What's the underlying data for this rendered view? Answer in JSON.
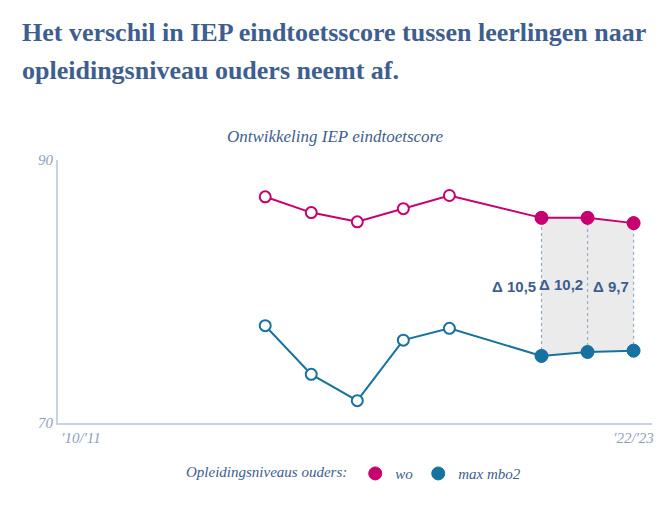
{
  "chart_data": {
    "type": "line",
    "title": "Het verschil in IEP eindtoetsscore tussen leerlingen naar opleidingsniveau ouders neemt af.",
    "subtitle": "Ontwikkeling IEP eindtoetscore",
    "categories": [
      "'10/'11",
      null,
      null,
      null,
      null,
      null,
      null,
      null,
      null,
      null,
      null,
      null,
      "'22/'23"
    ],
    "series": [
      {
        "name": "max mbo2",
        "color": "#17729f",
        "values": [
          null,
          null,
          null,
          null,
          77.4,
          73.7,
          71.7,
          76.3,
          77.2,
          null,
          75.1,
          75.4,
          75.5
        ]
      },
      {
        "name": "wo",
        "color": "#c8006f",
        "values": [
          null,
          null,
          null,
          null,
          87.2,
          86.0,
          85.3,
          86.3,
          87.3,
          null,
          85.6,
          85.6,
          85.2
        ]
      }
    ],
    "differences": {
      "values": [
        null,
        null,
        null,
        null,
        null,
        null,
        null,
        null,
        null,
        null,
        10.5,
        10.2,
        9.7
      ],
      "value_labels": [
        null,
        null,
        null,
        null,
        null,
        null,
        null,
        null,
        null,
        null,
        "Δ 10,5",
        "Δ 10,2",
        "Δ 9,7"
      ]
    },
    "ylim": [
      70,
      90
    ],
    "yticks": [
      70,
      90
    ],
    "grid": false,
    "legend": "bottom",
    "legend_title": "Opleidingsniveaus ouders:",
    "marker": "circle",
    "line_style": "solid"
  }
}
